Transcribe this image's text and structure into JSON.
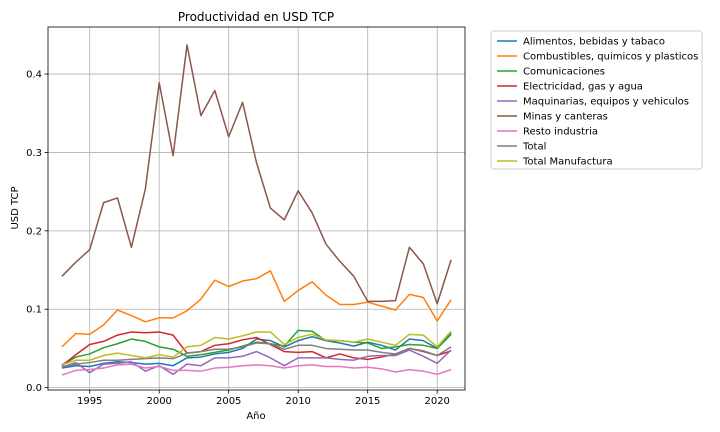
{
  "chart_data": {
    "type": "line",
    "title": "Productividad en USD TCP",
    "xlabel": "Año",
    "ylabel": "USD TCP",
    "xlim": [
      1992,
      2022
    ],
    "ylim": [
      -0.003,
      0.46
    ],
    "xticks": [
      1995,
      2000,
      2005,
      2010,
      2015,
      2020
    ],
    "yticks": [
      0.0,
      0.1,
      0.2,
      0.3,
      0.4
    ],
    "ytick_labels": [
      "0.0",
      "0.1",
      "0.2",
      "0.3",
      "0.4"
    ],
    "grid": true,
    "legend_position": "outside-right",
    "x": [
      1993,
      1994,
      1995,
      1996,
      1997,
      1998,
      1999,
      2000,
      2001,
      2002,
      2003,
      2004,
      2005,
      2006,
      2007,
      2008,
      2009,
      2010,
      2011,
      2012,
      2013,
      2014,
      2015,
      2016,
      2017,
      2018,
      2019,
      2020,
      2021
    ],
    "series": [
      {
        "name": "Alimentos, bebidas y tabaco",
        "color": "#1f77b4",
        "values": [
          0.025,
          0.028,
          0.027,
          0.031,
          0.033,
          0.032,
          0.03,
          0.031,
          0.028,
          0.038,
          0.039,
          0.043,
          0.045,
          0.05,
          0.062,
          0.06,
          0.052,
          0.06,
          0.065,
          0.06,
          0.057,
          0.053,
          0.058,
          0.054,
          0.048,
          0.062,
          0.06,
          0.05,
          0.07
        ]
      },
      {
        "name": "Combustibles, quimicos y plasticos",
        "color": "#ff7f0e",
        "values": [
          0.052,
          0.069,
          0.068,
          0.08,
          0.099,
          0.092,
          0.084,
          0.089,
          0.089,
          0.098,
          0.113,
          0.137,
          0.129,
          0.136,
          0.139,
          0.149,
          0.11,
          0.124,
          0.135,
          0.118,
          0.106,
          0.106,
          0.109,
          0.104,
          0.099,
          0.119,
          0.115,
          0.085,
          0.112
        ]
      },
      {
        "name": "Comunicaciones",
        "color": "#2ca02c",
        "values": [
          0.029,
          0.039,
          0.043,
          0.051,
          0.056,
          0.062,
          0.059,
          0.052,
          0.049,
          0.04,
          0.042,
          0.045,
          0.048,
          0.053,
          0.058,
          0.056,
          0.053,
          0.073,
          0.072,
          0.06,
          0.06,
          0.058,
          0.057,
          0.05,
          0.052,
          0.055,
          0.054,
          0.05,
          0.068
        ]
      },
      {
        "name": "Electricidad, gas y agua",
        "color": "#d62728",
        "values": [
          0.028,
          0.042,
          0.055,
          0.059,
          0.067,
          0.071,
          0.07,
          0.071,
          0.067,
          0.044,
          0.046,
          0.054,
          0.056,
          0.061,
          0.064,
          0.055,
          0.046,
          0.045,
          0.046,
          0.038,
          0.043,
          0.038,
          0.036,
          0.039,
          0.043,
          0.05,
          0.046,
          0.041,
          0.047
        ]
      },
      {
        "name": "Maquinarias, equipos y vehiculos",
        "color": "#9467bd",
        "values": [
          0.026,
          0.032,
          0.019,
          0.03,
          0.031,
          0.033,
          0.021,
          0.028,
          0.017,
          0.03,
          0.028,
          0.038,
          0.038,
          0.04,
          0.046,
          0.038,
          0.028,
          0.038,
          0.038,
          0.038,
          0.036,
          0.035,
          0.04,
          0.041,
          0.041,
          0.048,
          0.04,
          0.031,
          0.048
        ]
      },
      {
        "name": "Minas y canteras",
        "color": "#8c564b",
        "values": [
          0.142,
          0.16,
          0.176,
          0.236,
          0.242,
          0.179,
          0.253,
          0.389,
          0.296,
          0.437,
          0.347,
          0.379,
          0.32,
          0.364,
          0.287,
          0.229,
          0.214,
          0.251,
          0.223,
          0.183,
          0.161,
          0.142,
          0.11,
          0.11,
          0.111,
          0.179,
          0.158,
          0.107,
          0.163
        ]
      },
      {
        "name": "Resto industria",
        "color": "#e377c2",
        "values": [
          0.016,
          0.022,
          0.023,
          0.025,
          0.029,
          0.03,
          0.025,
          0.027,
          0.022,
          0.022,
          0.021,
          0.025,
          0.026,
          0.028,
          0.029,
          0.028,
          0.025,
          0.028,
          0.029,
          0.027,
          0.027,
          0.025,
          0.026,
          0.024,
          0.02,
          0.023,
          0.021,
          0.017,
          0.023
        ]
      },
      {
        "name": "Total",
        "color": "#7f7f7f",
        "values": [
          0.027,
          0.03,
          0.032,
          0.035,
          0.035,
          0.036,
          0.037,
          0.038,
          0.037,
          0.044,
          0.046,
          0.049,
          0.049,
          0.052,
          0.057,
          0.056,
          0.049,
          0.054,
          0.054,
          0.05,
          0.049,
          0.048,
          0.048,
          0.045,
          0.043,
          0.05,
          0.047,
          0.041,
          0.052
        ]
      },
      {
        "name": "Total Manufactura",
        "color": "#bcbd22",
        "values": [
          0.029,
          0.035,
          0.035,
          0.041,
          0.044,
          0.041,
          0.038,
          0.042,
          0.039,
          0.052,
          0.054,
          0.064,
          0.062,
          0.066,
          0.071,
          0.071,
          0.055,
          0.064,
          0.068,
          0.061,
          0.06,
          0.058,
          0.062,
          0.058,
          0.054,
          0.068,
          0.067,
          0.052,
          0.072
        ]
      }
    ]
  }
}
